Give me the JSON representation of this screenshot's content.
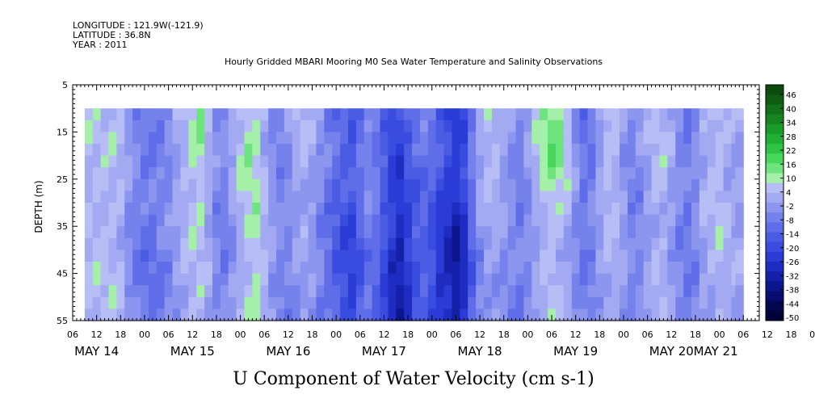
{
  "header": {
    "longitude": "LONGITUDE : 121.9W(-121.9)",
    "latitude": "LATITUDE : 36.8N",
    "year": "YEAR : 2011"
  },
  "chart_data": {
    "type": "heatmap",
    "title": "Hourly Gridded MBARI Mooring M0 Sea Water Temperature and Salinity Observations",
    "subtitle": "U Component of Water Velocity (cm s-1)",
    "ylabel": "DEPTH (m)",
    "xlabel": "",
    "ylim": [
      55,
      5
    ],
    "data_depth_range": [
      10,
      55
    ],
    "x_hour_ticks": [
      "06",
      "12",
      "18",
      "00",
      "06",
      "12",
      "18",
      "00",
      "06",
      "12",
      "18",
      "00",
      "06",
      "12",
      "18",
      "00",
      "06",
      "12",
      "18",
      "00",
      "06",
      "12",
      "18",
      "00",
      "06",
      "12",
      "18",
      "00",
      "06",
      "12",
      "18",
      "00"
    ],
    "day_labels": [
      "MAY 14",
      "MAY 15",
      "MAY 16",
      "MAY 17",
      "MAY 18",
      "MAY 19",
      "MAY 20",
      "MAY 21"
    ],
    "y_ticks": [
      5,
      15,
      25,
      35,
      45,
      55
    ],
    "colorbar": {
      "levels": [
        "46",
        "40",
        "34",
        "28",
        "22",
        "16",
        "10",
        "4",
        "-2",
        "-8",
        "-14",
        "-20",
        "-26",
        "-32",
        "-38",
        "-44",
        "-50"
      ],
      "colors": [
        "#0d4a0d",
        "#0e5c12",
        "#117018",
        "#15861f",
        "#1a9c28",
        "#22b034",
        "#2fc544",
        "#47d75a",
        "#6ee47e",
        "#a5f0a8",
        "#b7bdf5",
        "#a3aaf2",
        "#8d96ef",
        "#7682ec",
        "#5f6ee8",
        "#4a5ce4",
        "#3a4cdf",
        "#2a3bd6",
        "#1e2cc2",
        "#1420a8",
        "#0c168c",
        "#060d6f",
        "#020750",
        "#010338"
      ]
    },
    "u_profile": {
      "note_unit": "cm s-1",
      "time_hours_from_may14_00": [
        10,
        12,
        14,
        16,
        18,
        20,
        22,
        24,
        26,
        28,
        30,
        32,
        34,
        36,
        38,
        40,
        42,
        44,
        46,
        48,
        50,
        52,
        54,
        56,
        58,
        60,
        62,
        64,
        66,
        68,
        70,
        72,
        74,
        76,
        78,
        80,
        82,
        84,
        86,
        88,
        90,
        92,
        94,
        96,
        98,
        100,
        102,
        104,
        106,
        108,
        110,
        112,
        114,
        116,
        118,
        120,
        122,
        124,
        126,
        128,
        130,
        132,
        134,
        136,
        138,
        140,
        142,
        144,
        146,
        148,
        150,
        152,
        154,
        156,
        158,
        160,
        162,
        164,
        166,
        168,
        170,
        172,
        173
      ],
      "shallow_10_25m": [
        6,
        6,
        6,
        6,
        5,
        0,
        -4,
        -6,
        -6,
        -5,
        -3,
        2,
        6,
        10,
        12,
        4,
        -2,
        -4,
        2,
        8,
        12,
        10,
        4,
        -2,
        -4,
        0,
        4,
        6,
        2,
        -2,
        -6,
        -10,
        -12,
        -14,
        -8,
        -4,
        -6,
        -12,
        -18,
        -20,
        -14,
        -10,
        -8,
        -10,
        -14,
        -18,
        -22,
        -18,
        -6,
        4,
        8,
        6,
        2,
        -2,
        -4,
        0,
        6,
        12,
        16,
        14,
        8,
        -2,
        -8,
        -6,
        2,
        8,
        6,
        0,
        -4,
        -2,
        2,
        6,
        6,
        2,
        -4,
        -6,
        -2,
        4,
        6,
        8,
        4,
        2,
        2
      ],
      "deep_30_55m": [
        6,
        6,
        6,
        6,
        5,
        -2,
        -6,
        -8,
        -8,
        -6,
        -4,
        0,
        4,
        6,
        6,
        2,
        -4,
        -6,
        -2,
        4,
        8,
        10,
        6,
        0,
        -4,
        -4,
        -2,
        0,
        -2,
        -6,
        -10,
        -14,
        -18,
        -20,
        -14,
        -8,
        -10,
        -18,
        -26,
        -30,
        -24,
        -16,
        -14,
        -18,
        -24,
        -28,
        -32,
        -26,
        -12,
        -4,
        0,
        0,
        -2,
        -4,
        -6,
        -4,
        0,
        4,
        6,
        4,
        2,
        -2,
        -6,
        -4,
        0,
        4,
        4,
        0,
        -4,
        -4,
        0,
        4,
        4,
        0,
        -4,
        -6,
        -4,
        2,
        4,
        6,
        4,
        2,
        2
      ]
    }
  }
}
